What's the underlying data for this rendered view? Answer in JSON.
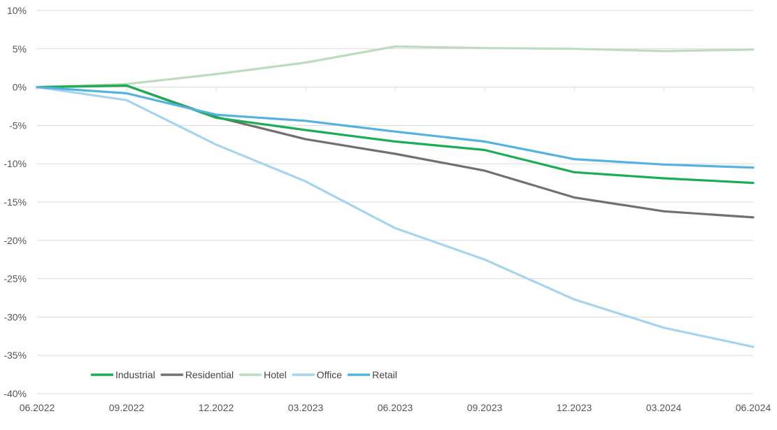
{
  "chart_data": {
    "type": "line",
    "title": "",
    "xlabel": "",
    "ylabel": "",
    "categories": [
      "06.2022",
      "09.2022",
      "12.2022",
      "03.2023",
      "06.2023",
      "09.2023",
      "12.2023",
      "03.2024",
      "06.2024"
    ],
    "ylim": [
      -40,
      10
    ],
    "yticks": [
      10,
      5,
      0,
      -5,
      -10,
      -15,
      -20,
      -25,
      -30,
      -35,
      -40
    ],
    "ytick_labels": [
      "10%",
      "5%",
      "0%",
      "-5%",
      "-10%",
      "-15%",
      "-20%",
      "-25%",
      "-30%",
      "-35%",
      "-40%"
    ],
    "grid": true,
    "legend_position": "bottom-left",
    "series": [
      {
        "name": "Industrial",
        "color": "#1aad56",
        "values": [
          0,
          0.2,
          -4.0,
          -5.6,
          -7.1,
          -8.2,
          -11.1,
          -11.9,
          -12.5
        ]
      },
      {
        "name": "Residential",
        "color": "#707070",
        "values": [
          0,
          0.2,
          -3.9,
          -6.8,
          -8.7,
          -10.9,
          -14.4,
          -16.2,
          -17.0
        ]
      },
      {
        "name": "Hotel",
        "color": "#bcdcbd",
        "values": [
          0,
          0.4,
          1.7,
          3.2,
          5.3,
          5.1,
          5.0,
          4.7,
          4.9
        ]
      },
      {
        "name": "Office",
        "color": "#a6d4ef",
        "values": [
          0,
          -1.7,
          -7.5,
          -12.3,
          -18.4,
          -22.5,
          -27.7,
          -31.4,
          -33.9
        ]
      },
      {
        "name": "Retail",
        "color": "#54b2e0",
        "values": [
          0,
          -0.8,
          -3.6,
          -4.4,
          -5.8,
          -7.1,
          -9.4,
          -10.1,
          -10.5
        ]
      }
    ]
  }
}
